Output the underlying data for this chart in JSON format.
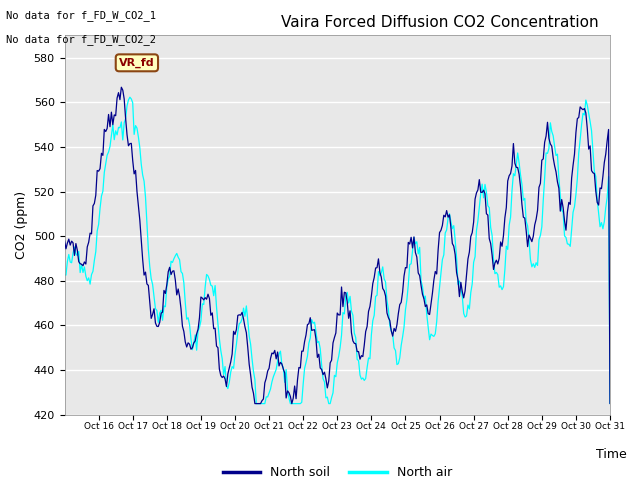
{
  "title": "Vaira Forced Diffusion CO2 Concentration",
  "ylabel": "CO2 (ppm)",
  "xlabel": "Time",
  "ylim": [
    420,
    590
  ],
  "yticks": [
    420,
    440,
    460,
    480,
    500,
    520,
    540,
    560,
    580
  ],
  "color_soil": "#00008B",
  "color_air": "#00FFFF",
  "bg_color": "#E8E8E8",
  "text_no_data_1": "No data for f_FD_W_CO2_1",
  "text_no_data_2": "No data for f_FD_W_CO2_2",
  "legend_soil": "North soil",
  "legend_air": "North air",
  "annotation_label": "VR_fd",
  "tick_labels": [
    "Oct 16",
    "Oct 17",
    "Oct 18",
    "Oct 19",
    "Oct 20",
    "Oct 21",
    "Oct 22",
    "Oct 23",
    "Oct 24",
    "Oct 25",
    "Oct 26",
    "Oct 27",
    "Oct 28",
    "Oct 29",
    "Oct 30",
    "Oct 31"
  ]
}
